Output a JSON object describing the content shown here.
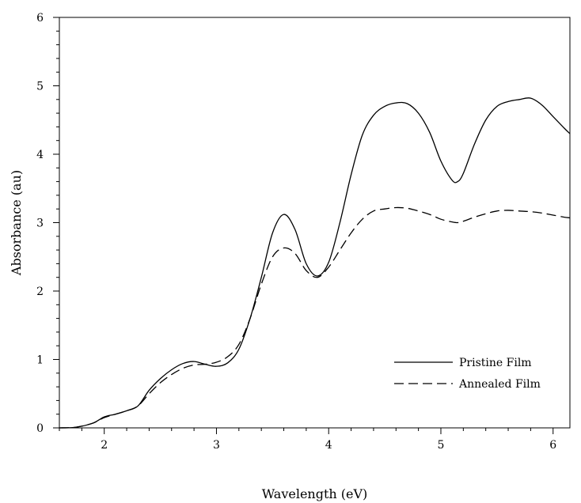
{
  "chart_data": {
    "type": "line",
    "title": "",
    "xlabel": "Wavelength (eV)",
    "ylabel": "Absorbance (au)",
    "xlim": [
      1.6,
      6.15
    ],
    "ylim": [
      0,
      6
    ],
    "xticks": [
      2,
      3,
      4,
      5,
      6
    ],
    "yticks": [
      0,
      1,
      2,
      3,
      4,
      5,
      6
    ],
    "grid": false,
    "legend_position": "bottom-right",
    "series": [
      {
        "name": "Pristine Film",
        "style": "solid",
        "color": "#000000",
        "points": [
          [
            1.6,
            0.0
          ],
          [
            1.75,
            0.01
          ],
          [
            1.9,
            0.07
          ],
          [
            2.0,
            0.16
          ],
          [
            2.1,
            0.2
          ],
          [
            2.2,
            0.25
          ],
          [
            2.3,
            0.32
          ],
          [
            2.4,
            0.55
          ],
          [
            2.5,
            0.72
          ],
          [
            2.6,
            0.85
          ],
          [
            2.7,
            0.94
          ],
          [
            2.8,
            0.97
          ],
          [
            2.9,
            0.93
          ],
          [
            3.0,
            0.9
          ],
          [
            3.1,
            0.95
          ],
          [
            3.2,
            1.15
          ],
          [
            3.3,
            1.6
          ],
          [
            3.4,
            2.2
          ],
          [
            3.5,
            2.85
          ],
          [
            3.6,
            3.12
          ],
          [
            3.7,
            2.9
          ],
          [
            3.8,
            2.4
          ],
          [
            3.9,
            2.22
          ],
          [
            4.0,
            2.42
          ],
          [
            4.1,
            3.0
          ],
          [
            4.2,
            3.7
          ],
          [
            4.3,
            4.28
          ],
          [
            4.4,
            4.57
          ],
          [
            4.5,
            4.7
          ],
          [
            4.6,
            4.75
          ],
          [
            4.7,
            4.74
          ],
          [
            4.8,
            4.6
          ],
          [
            4.9,
            4.32
          ],
          [
            5.0,
            3.9
          ],
          [
            5.1,
            3.62
          ],
          [
            5.15,
            3.6
          ],
          [
            5.2,
            3.72
          ],
          [
            5.3,
            4.15
          ],
          [
            5.4,
            4.5
          ],
          [
            5.5,
            4.7
          ],
          [
            5.6,
            4.77
          ],
          [
            5.7,
            4.8
          ],
          [
            5.8,
            4.82
          ],
          [
            5.9,
            4.72
          ],
          [
            6.0,
            4.55
          ],
          [
            6.1,
            4.38
          ],
          [
            6.15,
            4.3
          ]
        ]
      },
      {
        "name": "Annealed Film",
        "style": "dashed",
        "color": "#000000",
        "points": [
          [
            1.6,
            0.0
          ],
          [
            1.75,
            0.01
          ],
          [
            1.9,
            0.07
          ],
          [
            2.0,
            0.15
          ],
          [
            2.1,
            0.2
          ],
          [
            2.2,
            0.25
          ],
          [
            2.3,
            0.32
          ],
          [
            2.4,
            0.5
          ],
          [
            2.5,
            0.66
          ],
          [
            2.6,
            0.78
          ],
          [
            2.7,
            0.87
          ],
          [
            2.8,
            0.92
          ],
          [
            2.9,
            0.93
          ],
          [
            3.0,
            0.96
          ],
          [
            3.1,
            1.04
          ],
          [
            3.2,
            1.22
          ],
          [
            3.3,
            1.6
          ],
          [
            3.4,
            2.1
          ],
          [
            3.5,
            2.5
          ],
          [
            3.6,
            2.63
          ],
          [
            3.7,
            2.55
          ],
          [
            3.8,
            2.3
          ],
          [
            3.9,
            2.2
          ],
          [
            4.0,
            2.35
          ],
          [
            4.1,
            2.6
          ],
          [
            4.2,
            2.85
          ],
          [
            4.3,
            3.05
          ],
          [
            4.4,
            3.17
          ],
          [
            4.5,
            3.2
          ],
          [
            4.6,
            3.22
          ],
          [
            4.7,
            3.21
          ],
          [
            4.8,
            3.17
          ],
          [
            4.9,
            3.12
          ],
          [
            5.0,
            3.05
          ],
          [
            5.1,
            3.01
          ],
          [
            5.15,
            3.0
          ],
          [
            5.2,
            3.02
          ],
          [
            5.3,
            3.08
          ],
          [
            5.4,
            3.13
          ],
          [
            5.5,
            3.17
          ],
          [
            5.6,
            3.18
          ],
          [
            5.7,
            3.17
          ],
          [
            5.8,
            3.16
          ],
          [
            5.9,
            3.14
          ],
          [
            6.0,
            3.11
          ],
          [
            6.1,
            3.08
          ],
          [
            6.15,
            3.07
          ]
        ]
      }
    ]
  }
}
